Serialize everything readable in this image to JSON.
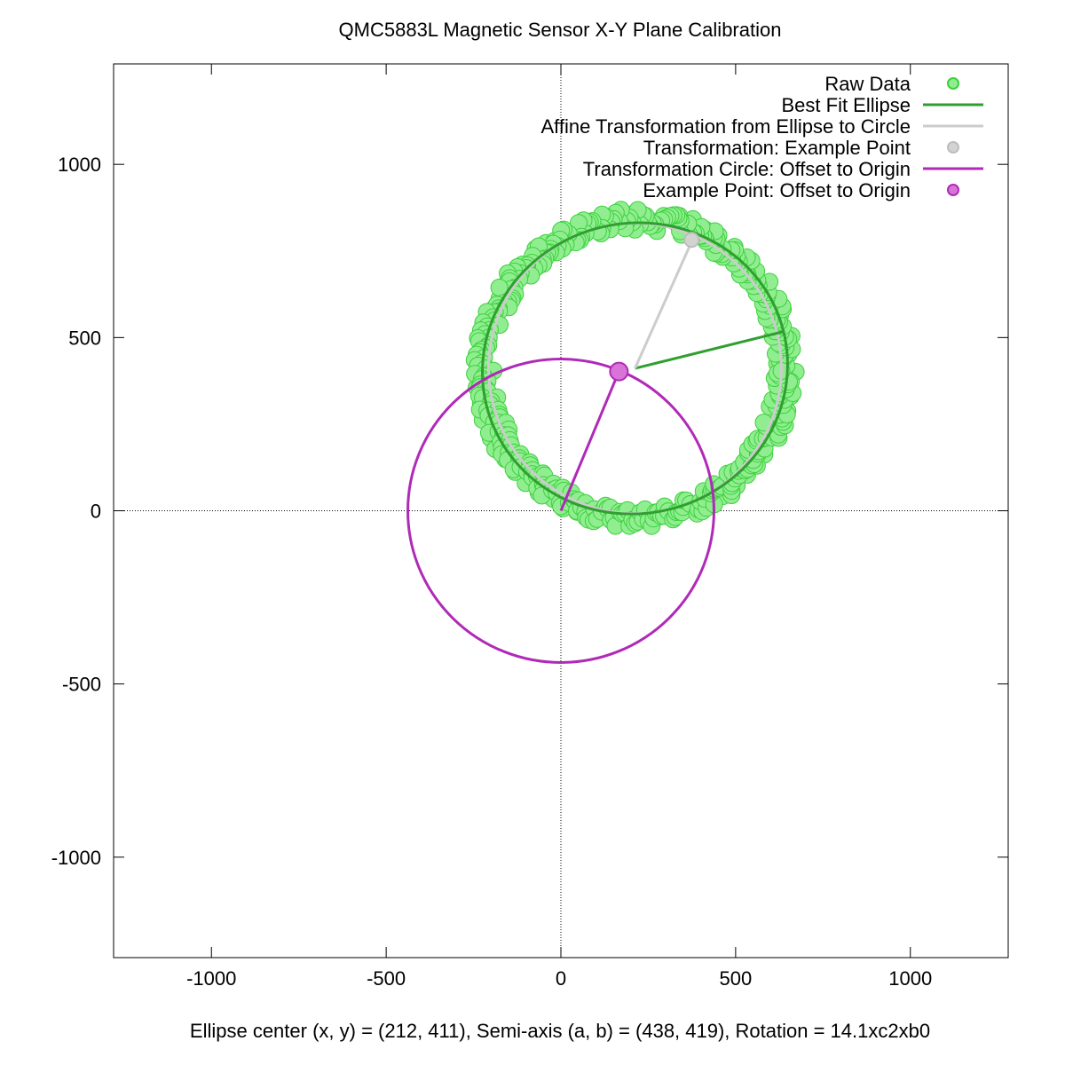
{
  "chart_data": {
    "type": "scatter",
    "title": "QMC5883L Magnetic Sensor X-Y Plane Calibration",
    "xlabel": "Ellipse center (x, y) = (212, 411), Semi-axis (a, b) = (438, 419), Rotation = 14.1xc2xb0",
    "ylabel": "",
    "xlim": [
      -1280,
      1280
    ],
    "ylim": [
      -1290,
      1290
    ],
    "xticks": [
      -1000,
      -500,
      0,
      500,
      1000
    ],
    "yticks": [
      -1000,
      -500,
      0,
      500,
      1000
    ],
    "xtick_labels": [
      "-1000",
      "-500",
      "0",
      "500",
      "1000"
    ],
    "ytick_labels": [
      "-1000",
      "-500",
      "0",
      "500",
      "1000"
    ],
    "zero_axes": true,
    "legend_position": "top-right",
    "legend": [
      {
        "label": "Raw Data",
        "kind": "point",
        "color": "#90ee90",
        "stroke": "#3cd03c"
      },
      {
        "label": "Best Fit Ellipse",
        "kind": "line",
        "color": "#2f9f2f"
      },
      {
        "label": "Affine Transformation from Ellipse to Circle",
        "kind": "line",
        "color": "#cccccc"
      },
      {
        "label": "Transformation: Example Point",
        "kind": "point",
        "color": "#d3d3d3",
        "stroke": "#bdbdbd"
      },
      {
        "label": "Transformation Circle: Offset to Origin",
        "kind": "line",
        "color": "#b02ab8"
      },
      {
        "label": "Example Point: Offset to Origin",
        "kind": "point",
        "color": "#d874d8",
        "stroke": "#b02ab8"
      }
    ],
    "ellipse": {
      "center": [
        212,
        411
      ],
      "semi_axes": [
        438,
        419
      ],
      "rotation_deg": 14.1
    },
    "affine_circle": {
      "center": [
        212,
        411
      ],
      "radius": 419
    },
    "offset_circle": {
      "center": [
        0,
        0
      ],
      "radius": 438
    },
    "raw_data": {
      "center": [
        212,
        411
      ],
      "radius_range": [
        400,
        460
      ],
      "points": [
        [
          651,
          451
        ],
        [
          627,
          563
        ],
        [
          586,
          632
        ],
        [
          543,
          715
        ],
        [
          451,
          795
        ],
        [
          378,
          842
        ],
        [
          294,
          851
        ],
        [
          206,
          856
        ],
        [
          118,
          843
        ],
        [
          36,
          806
        ],
        [
          -43,
          773
        ],
        [
          -110,
          711
        ],
        [
          -160,
          651
        ],
        [
          -200,
          561
        ],
        [
          -226,
          478
        ],
        [
          -236,
          401
        ],
        [
          -229,
          311
        ],
        [
          -201,
          209
        ],
        [
          -159,
          149
        ],
        [
          -101,
          80
        ],
        [
          -22,
          34
        ],
        [
          46,
          -3
        ],
        [
          139,
          -21
        ],
        [
          216,
          -29
        ],
        [
          306,
          -13
        ],
        [
          381,
          7
        ],
        [
          463,
          42
        ],
        [
          533,
          104
        ],
        [
          582,
          162
        ],
        [
          632,
          264
        ],
        [
          658,
          331
        ],
        [
          672,
          401
        ],
        [
          639,
          510
        ],
        [
          606,
          600
        ],
        [
          497,
          762
        ],
        [
          339,
          851
        ],
        [
          160,
          853
        ],
        [
          -1,
          791
        ],
        [
          -137,
          686
        ],
        [
          -214,
          522
        ],
        [
          -241,
          356
        ],
        [
          -188,
          178
        ],
        [
          -64,
          52
        ],
        [
          96,
          -21
        ],
        [
          261,
          -24
        ],
        [
          421,
          26
        ],
        [
          561,
          130
        ],
        [
          648,
          289
        ],
        [
          602,
          587
        ],
        [
          488,
          751
        ],
        [
          325,
          835
        ],
        [
          250,
          842
        ],
        [
          74,
          826
        ],
        [
          -73,
          756
        ],
        [
          -176,
          612
        ],
        [
          -221,
          445
        ],
        [
          -224,
          262
        ],
        [
          -131,
          112
        ],
        [
          6,
          7
        ],
        [
          175,
          -21
        ],
        [
          346,
          -4
        ],
        [
          503,
          72
        ],
        [
          612,
          214
        ],
        [
          658,
          372
        ],
        [
          660,
          505
        ],
        [
          560,
          665
        ],
        [
          413,
          812
        ],
        [
          235,
          844
        ],
        [
          -18,
          779
        ],
        [
          -193,
          582
        ]
      ]
    },
    "example_point": {
      "raw": [
        380,
        790
      ],
      "transformed": [
        374,
        782
      ],
      "offset": [
        166,
        402
      ]
    },
    "ellipse_radius_line": {
      "from": [
        212,
        411
      ],
      "to": [
        640,
        518
      ]
    },
    "affine_line": {
      "from": [
        212,
        411
      ],
      "to": [
        380,
        790
      ]
    },
    "offset_line": {
      "from": [
        0,
        0
      ],
      "to": [
        166,
        402
      ]
    }
  }
}
